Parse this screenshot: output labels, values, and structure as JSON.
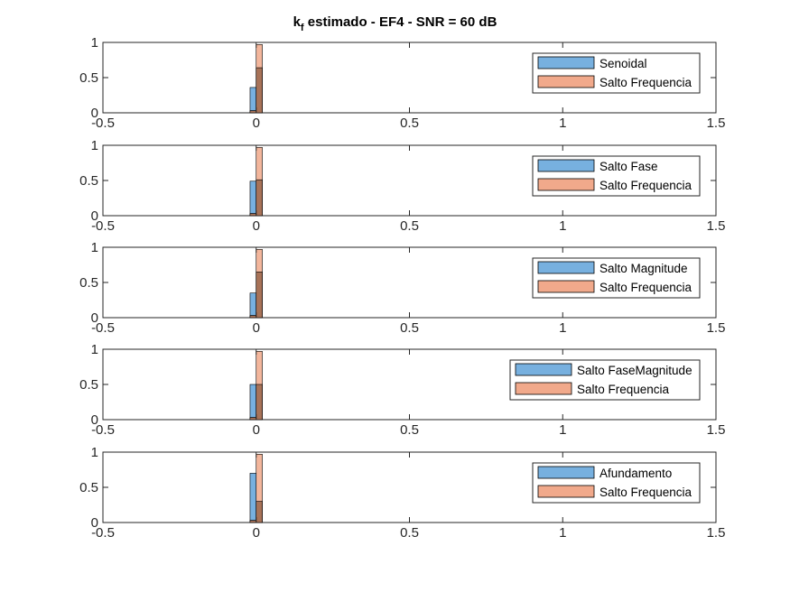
{
  "figure": {
    "title_prefix": "k",
    "title_subscript": "f",
    "title_suffix": " estimado - EF4 - SNR = 60 dB"
  },
  "colors": {
    "series_a": "#77B0DF",
    "series_b": "#F1A98B",
    "overlap": "#A87358",
    "axes": "#262626",
    "edge": "#000000"
  },
  "chart_data": [
    {
      "type": "bar",
      "subtype": "histogram-overlay",
      "xlim": [
        -0.5,
        1.5
      ],
      "ylim": [
        0,
        1
      ],
      "xticks": [
        -0.5,
        0,
        0.5,
        1,
        1.5
      ],
      "xtick_labels": [
        "-0.5",
        "0",
        "0.5",
        "1",
        "1.5"
      ],
      "yticks": [
        0,
        0.5,
        1
      ],
      "ytick_labels": [
        "0",
        "0.5",
        "1"
      ],
      "grid": false,
      "legend_position": "top-right",
      "bin_edges": [
        -0.02,
        0,
        0.02
      ],
      "series": [
        {
          "name": "Senoidal",
          "color": "series_a",
          "values": [
            0.36,
            0.64
          ]
        },
        {
          "name": "Salto Frequencia",
          "color": "series_b",
          "values": [
            0.03,
            0.97
          ]
        }
      ]
    },
    {
      "type": "bar",
      "subtype": "histogram-overlay",
      "xlim": [
        -0.5,
        1.5
      ],
      "ylim": [
        0,
        1
      ],
      "xticks": [
        -0.5,
        0,
        0.5,
        1,
        1.5
      ],
      "xtick_labels": [
        "-0.5",
        "0",
        "0.5",
        "1",
        "1.5"
      ],
      "yticks": [
        0,
        0.5,
        1
      ],
      "ytick_labels": [
        "0",
        "0.5",
        "1"
      ],
      "grid": false,
      "legend_position": "top-right",
      "bin_edges": [
        -0.02,
        0,
        0.02
      ],
      "series": [
        {
          "name": "Salto Fase",
          "color": "series_a",
          "values": [
            0.49,
            0.51
          ]
        },
        {
          "name": "Salto Frequencia",
          "color": "series_b",
          "values": [
            0.03,
            0.97
          ]
        }
      ]
    },
    {
      "type": "bar",
      "subtype": "histogram-overlay",
      "xlim": [
        -0.5,
        1.5
      ],
      "ylim": [
        0,
        1
      ],
      "xticks": [
        -0.5,
        0,
        0.5,
        1,
        1.5
      ],
      "xtick_labels": [
        "-0.5",
        "0",
        "0.5",
        "1",
        "1.5"
      ],
      "yticks": [
        0,
        0.5,
        1
      ],
      "ytick_labels": [
        "0",
        "0.5",
        "1"
      ],
      "grid": false,
      "legend_position": "top-right",
      "bin_edges": [
        -0.02,
        0,
        0.02
      ],
      "series": [
        {
          "name": "Salto Magnitude",
          "color": "series_a",
          "values": [
            0.35,
            0.65
          ]
        },
        {
          "name": "Salto Frequencia",
          "color": "series_b",
          "values": [
            0.03,
            0.97
          ]
        }
      ]
    },
    {
      "type": "bar",
      "subtype": "histogram-overlay",
      "xlim": [
        -0.5,
        1.5
      ],
      "ylim": [
        0,
        1
      ],
      "xticks": [
        -0.5,
        0,
        0.5,
        1,
        1.5
      ],
      "xtick_labels": [
        "-0.5",
        "0",
        "0.5",
        "1",
        "1.5"
      ],
      "yticks": [
        0,
        0.5,
        1
      ],
      "ytick_labels": [
        "0",
        "0.5",
        "1"
      ],
      "grid": false,
      "legend_position": "top-right",
      "bin_edges": [
        -0.02,
        0,
        0.02
      ],
      "series": [
        {
          "name": "Salto FaseMagnitude",
          "color": "series_a",
          "values": [
            0.5,
            0.5
          ]
        },
        {
          "name": "Salto Frequencia",
          "color": "series_b",
          "values": [
            0.03,
            0.97
          ]
        }
      ]
    },
    {
      "type": "bar",
      "subtype": "histogram-overlay",
      "xlim": [
        -0.5,
        1.5
      ],
      "ylim": [
        0,
        1
      ],
      "xticks": [
        -0.5,
        0,
        0.5,
        1,
        1.5
      ],
      "xtick_labels": [
        "-0.5",
        "0",
        "0.5",
        "1",
        "1.5"
      ],
      "yticks": [
        0,
        0.5,
        1
      ],
      "ytick_labels": [
        "0",
        "0.5",
        "1"
      ],
      "grid": false,
      "legend_position": "top-right",
      "bin_edges": [
        -0.02,
        0,
        0.02
      ],
      "series": [
        {
          "name": "Afundamento",
          "color": "series_a",
          "values": [
            0.7,
            0.3
          ]
        },
        {
          "name": "Salto Frequencia",
          "color": "series_b",
          "values": [
            0.03,
            0.97
          ]
        }
      ]
    }
  ]
}
